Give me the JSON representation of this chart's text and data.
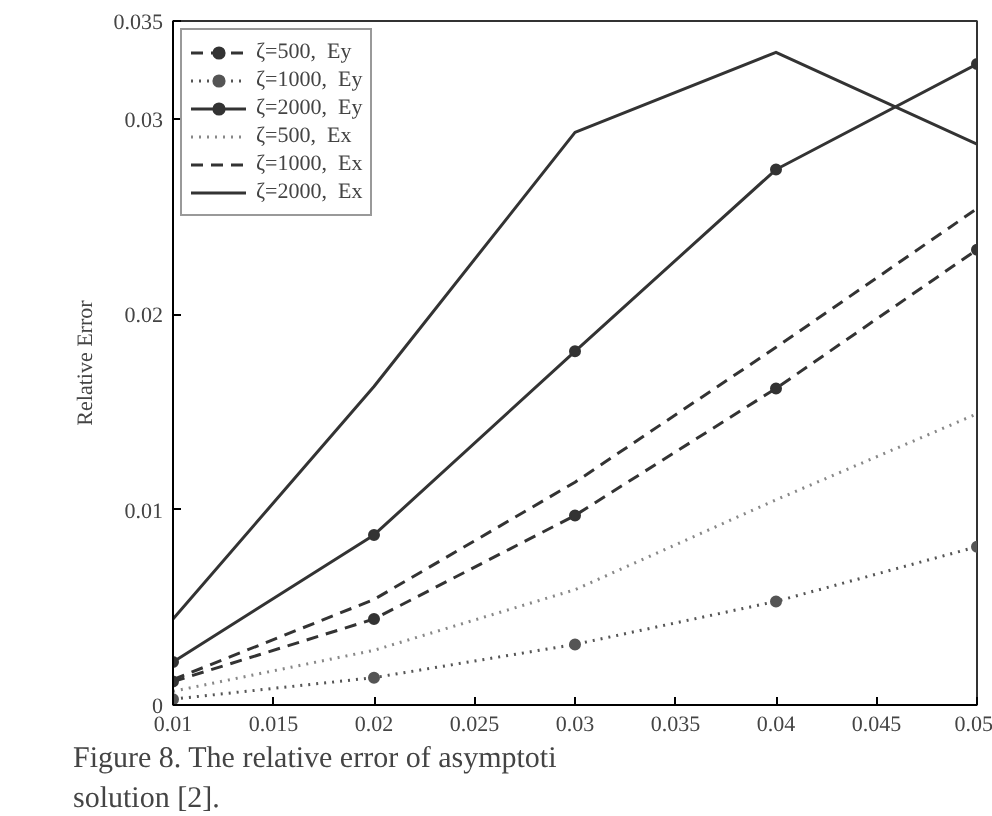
{
  "chart_data": {
    "type": "line",
    "ylabel": "Relative Error",
    "x": [
      0.01,
      0.02,
      0.03,
      0.04,
      0.05
    ],
    "series": [
      {
        "name": "ζ=500,  Ey",
        "color": "#333333",
        "marker": "circle",
        "line_style": "dashed",
        "values": [
          0.0012,
          0.0044,
          0.0097,
          0.0162,
          0.0233
        ]
      },
      {
        "name": "ζ=1000,  Ey",
        "color": "#555555",
        "marker": "circle",
        "line_style": "dotted",
        "values": [
          0.0003,
          0.0014,
          0.0031,
          0.0053,
          0.0081
        ]
      },
      {
        "name": "ζ=2000,  Ey",
        "color": "#333333",
        "marker": "circle",
        "line_style": "solid",
        "values": [
          0.0022,
          0.0087,
          0.0181,
          0.0274,
          0.0328
        ]
      },
      {
        "name": "ζ=500,  Ex",
        "color": "#888888",
        "marker": "none",
        "line_style": "dotted",
        "values": [
          0.0007,
          0.0028,
          0.0059,
          0.0105,
          0.0149
        ]
      },
      {
        "name": "ζ=1000,  Ex",
        "color": "#333333",
        "marker": "none",
        "line_style": "dashed",
        "values": [
          0.0013,
          0.0054,
          0.0114,
          0.0183,
          0.0254
        ]
      },
      {
        "name": "ζ=2000,  Ex",
        "color": "#333333",
        "marker": "none",
        "line_style": "solid",
        "values": [
          0.0044,
          0.0163,
          0.0293,
          0.0334,
          0.0287
        ]
      }
    ],
    "xlim": [
      0.01,
      0.05
    ],
    "ylim": [
      0,
      0.035
    ],
    "xticks": [
      0.01,
      0.015,
      0.02,
      0.025,
      0.03,
      0.035,
      0.04,
      0.045,
      0.05
    ],
    "yticks": [
      {
        "value": 0,
        "label": "0"
      },
      0.01,
      0.02,
      0.03,
      0.035
    ],
    "grid": false,
    "legend": "top left",
    "annotations": [
      "Figure 8.  The relative error of asymptoti",
      "solution [2]."
    ]
  }
}
